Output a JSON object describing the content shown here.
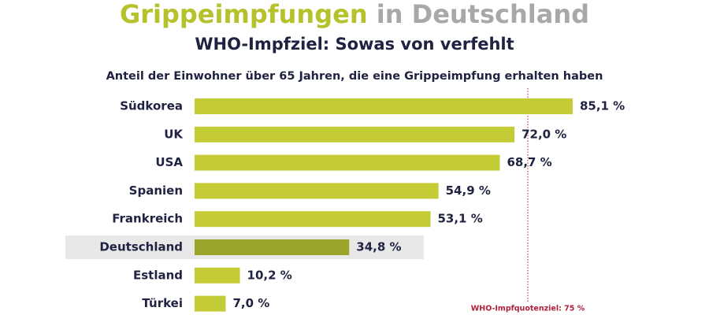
{
  "chart_data": {
    "type": "bar",
    "orientation": "horizontal",
    "title": {
      "main": "Grippeimpfungen",
      "rest": "in Deutschland"
    },
    "subtitle": "WHO-Impfziel: Sowas von verfehlt",
    "description": "Anteil der Einwohner über 65 Jahren, die eine Grippeimpfung erhalten haben",
    "categories": [
      "Südkorea",
      "UK",
      "USA",
      "Spanien",
      "Frankreich",
      "Deutschland",
      "Estland",
      "Türkei"
    ],
    "values": [
      85.1,
      72.0,
      68.7,
      54.9,
      53.1,
      34.8,
      10.2,
      7.0
    ],
    "value_labels": [
      "85,1 %",
      "72,0 %",
      "68,7 %",
      "54,9 %",
      "53,1 %",
      "34,8 %",
      "10,2 %",
      "7,0 %"
    ],
    "colors": [
      "#c3cc35",
      "#c3cc35",
      "#c3cc35",
      "#c3cc35",
      "#c3cc35",
      "#9aa32a",
      "#c3cc35",
      "#c3cc35"
    ],
    "highlight_color": "#9aa32a",
    "xlim": [
      0,
      100
    ],
    "reference": {
      "value": 75,
      "label": "WHO-Impfquotenziel: 75 %",
      "color": "#b0203a"
    }
  }
}
